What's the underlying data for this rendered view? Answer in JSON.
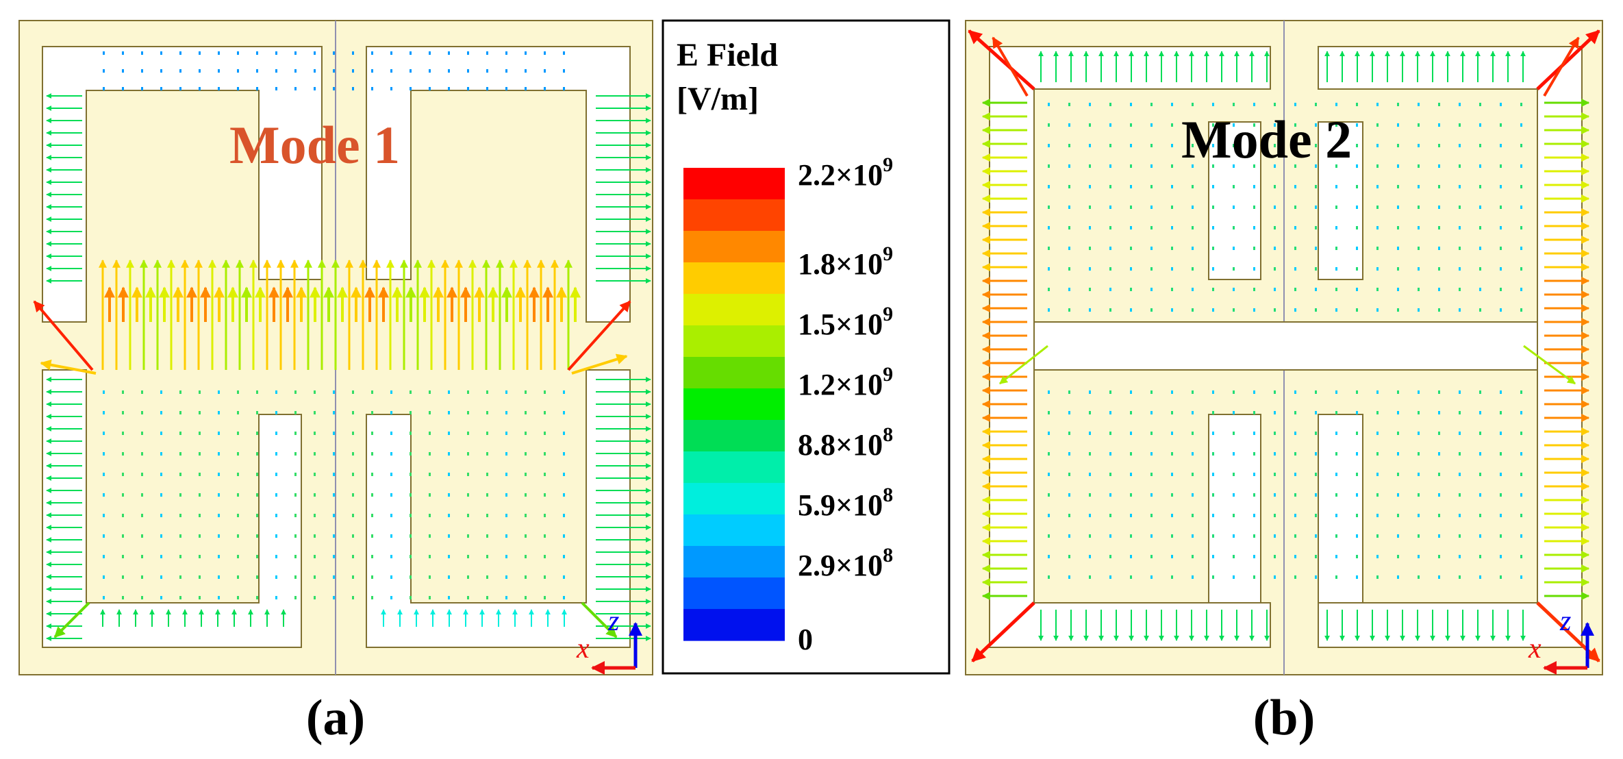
{
  "panels": {
    "a": {
      "mode_label": "Mode 1",
      "caption": "(a)",
      "mode_color": "#d9542b"
    },
    "b": {
      "mode_label": "Mode 2",
      "caption": "(b)",
      "mode_color": "#000000"
    }
  },
  "legend": {
    "title_line1": "E Field",
    "title_line2": "[V/m]",
    "labels": [
      {
        "mant": "2.2×10",
        "exp": "9"
      },
      {
        "mant": "1.8×10",
        "exp": "9"
      },
      {
        "mant": "1.5×10",
        "exp": "9"
      },
      {
        "mant": "1.2×10",
        "exp": "9"
      },
      {
        "mant": "8.8×10",
        "exp": "8"
      },
      {
        "mant": "5.9×10",
        "exp": "8"
      },
      {
        "mant": "2.9×10",
        "exp": "8"
      },
      {
        "mant": "0",
        "exp": ""
      }
    ],
    "colors": [
      "#ff0000",
      "#ff4400",
      "#ff8800",
      "#ffcc00",
      "#ddf000",
      "#aaee00",
      "#66dd00",
      "#00ee00",
      "#00dd55",
      "#00eeaa",
      "#00eedd",
      "#00ccff",
      "#0099ff",
      "#0055ff",
      "#0011ee"
    ]
  },
  "axes": {
    "z": "z",
    "x": "x",
    "z_color": "#0000ee",
    "x_color": "#ee1111"
  },
  "colors": {
    "background": "#fcf7d2",
    "outline": "#807030",
    "centerline": "#9090b0"
  }
}
